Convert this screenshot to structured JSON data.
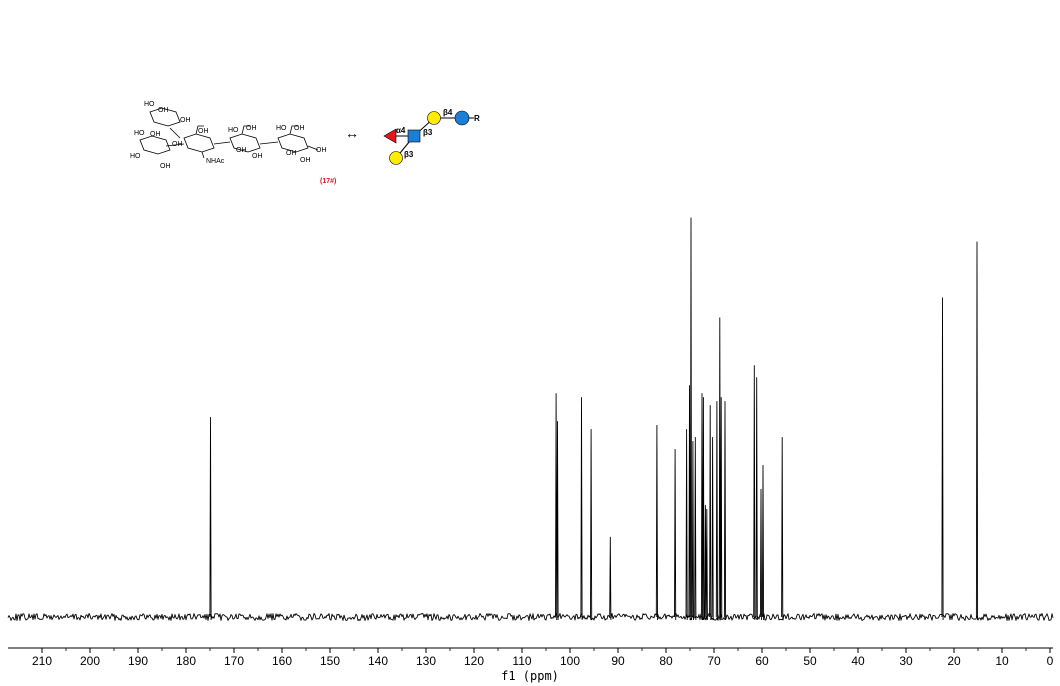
{
  "chart_data": {
    "type": "line",
    "title": "",
    "xlabel": "f1 (ppm)",
    "ylabel": "",
    "xlim": [
      212.5,
      0
    ],
    "ylim": [
      0,
      1.0
    ],
    "grid": false,
    "x_ticks": [
      210,
      200,
      190,
      180,
      170,
      160,
      150,
      140,
      130,
      120,
      110,
      100,
      90,
      80,
      70,
      60,
      50,
      40,
      30,
      20,
      10,
      0
    ],
    "x_tick_labels": [
      "210",
      "200",
      "190",
      "180",
      "170",
      "160",
      "150",
      "140",
      "130",
      "120",
      "110",
      "100",
      "90",
      "80",
      "70",
      "60",
      "50",
      "40",
      "30",
      "20",
      "10",
      "0"
    ],
    "peaks": [
      {
        "ppm": 174.9,
        "height": 0.5
      },
      {
        "ppm": 102.9,
        "height": 0.56
      },
      {
        "ppm": 102.6,
        "height": 0.49
      },
      {
        "ppm": 97.6,
        "height": 0.55
      },
      {
        "ppm": 95.6,
        "height": 0.47
      },
      {
        "ppm": 91.6,
        "height": 0.2
      },
      {
        "ppm": 81.9,
        "height": 0.48
      },
      {
        "ppm": 78.1,
        "height": 0.42
      },
      {
        "ppm": 75.7,
        "height": 0.47
      },
      {
        "ppm": 75.1,
        "height": 0.58
      },
      {
        "ppm": 74.8,
        "height": 1.0
      },
      {
        "ppm": 74.4,
        "height": 0.44
      },
      {
        "ppm": 73.9,
        "height": 0.45
      },
      {
        "ppm": 72.5,
        "height": 0.56
      },
      {
        "ppm": 72.2,
        "height": 0.55
      },
      {
        "ppm": 71.8,
        "height": 0.28
      },
      {
        "ppm": 71.5,
        "height": 0.27
      },
      {
        "ppm": 70.8,
        "height": 0.53
      },
      {
        "ppm": 70.3,
        "height": 0.45
      },
      {
        "ppm": 69.4,
        "height": 0.54
      },
      {
        "ppm": 68.8,
        "height": 0.75
      },
      {
        "ppm": 68.5,
        "height": 0.55
      },
      {
        "ppm": 67.7,
        "height": 0.54
      },
      {
        "ppm": 61.6,
        "height": 0.63
      },
      {
        "ppm": 61.1,
        "height": 0.6
      },
      {
        "ppm": 60.2,
        "height": 0.32
      },
      {
        "ppm": 59.8,
        "height": 0.38
      },
      {
        "ppm": 55.8,
        "height": 0.45
      },
      {
        "ppm": 22.4,
        "height": 0.8
      },
      {
        "ppm": 15.2,
        "height": 0.94
      }
    ]
  },
  "annotation": {
    "compound_label": "(17#)",
    "arrow_symbol": "↔",
    "glycan_linkages": [
      "α4",
      "β3",
      "β4",
      "β3"
    ],
    "glycan_aglycone": "R",
    "structure_labels": [
      "HO",
      "OH",
      "HO",
      "OH",
      "HO",
      "OH",
      "HO",
      "OH",
      "HO",
      "OH",
      "OH",
      "NHAc",
      "OH",
      "OH",
      "OH",
      "OH",
      "OH",
      "OH",
      "OH"
    ],
    "colors": {
      "fucose": "#e8141c",
      "galactose": "#ffed00",
      "glcnac": "#1c7fd6",
      "glucose": "#1c7fd6",
      "compound_label": "#e8141c",
      "spectrum": "#000000"
    }
  }
}
